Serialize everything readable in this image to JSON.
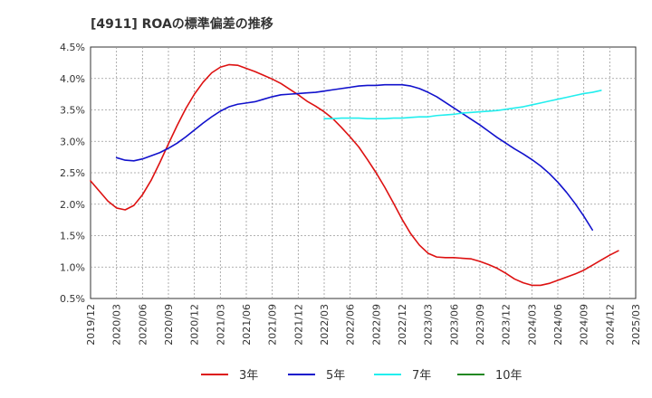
{
  "chart_data": {
    "type": "line",
    "title": "[4911]  ROAの標準偏差の推移",
    "xlabel": "",
    "ylabel": "",
    "x_ticks": [
      "2019/12",
      "2020/03",
      "2020/06",
      "2020/09",
      "2020/12",
      "2021/03",
      "2021/06",
      "2021/09",
      "2021/12",
      "2022/03",
      "2022/06",
      "2022/09",
      "2022/12",
      "2023/03",
      "2023/06",
      "2023/09",
      "2023/12",
      "2024/03",
      "2024/06",
      "2024/09",
      "2024/12",
      "2025/03"
    ],
    "y_ticks": [
      "0.5%",
      "1.0%",
      "1.5%",
      "2.0%",
      "2.5%",
      "3.0%",
      "3.5%",
      "4.0%",
      "4.5%"
    ],
    "ylim": [
      0.5,
      4.5
    ],
    "grid": true,
    "legend_position": "bottom",
    "series": [
      {
        "name": "3年",
        "color": "#dd1111",
        "points": [
          [
            "2019/12",
            2.37
          ],
          [
            "2020/01",
            2.21
          ],
          [
            "2020/02",
            2.05
          ],
          [
            "2020/03",
            1.94
          ],
          [
            "2020/04",
            1.91
          ],
          [
            "2020/05",
            1.98
          ],
          [
            "2020/06",
            2.15
          ],
          [
            "2020/07",
            2.38
          ],
          [
            "2020/08",
            2.66
          ],
          [
            "2020/09",
            2.96
          ],
          [
            "2020/10",
            3.25
          ],
          [
            "2020/11",
            3.52
          ],
          [
            "2020/12",
            3.75
          ],
          [
            "2021/01",
            3.94
          ],
          [
            "2021/02",
            4.09
          ],
          [
            "2021/03",
            4.18
          ],
          [
            "2021/04",
            4.22
          ],
          [
            "2021/05",
            4.21
          ],
          [
            "2021/06",
            4.16
          ],
          [
            "2021/07",
            4.11
          ],
          [
            "2021/08",
            4.05
          ],
          [
            "2021/09",
            3.99
          ],
          [
            "2021/10",
            3.92
          ],
          [
            "2021/11",
            3.83
          ],
          [
            "2021/12",
            3.74
          ],
          [
            "2022/01",
            3.64
          ],
          [
            "2022/02",
            3.56
          ],
          [
            "2022/03",
            3.47
          ],
          [
            "2022/04",
            3.36
          ],
          [
            "2022/05",
            3.22
          ],
          [
            "2022/06",
            3.07
          ],
          [
            "2022/07",
            2.91
          ],
          [
            "2022/08",
            2.71
          ],
          [
            "2022/09",
            2.5
          ],
          [
            "2022/10",
            2.27
          ],
          [
            "2022/11",
            2.02
          ],
          [
            "2022/12",
            1.76
          ],
          [
            "2023/01",
            1.53
          ],
          [
            "2023/02",
            1.35
          ],
          [
            "2023/03",
            1.22
          ],
          [
            "2023/04",
            1.16
          ],
          [
            "2023/05",
            1.15
          ],
          [
            "2023/06",
            1.15
          ],
          [
            "2023/07",
            1.14
          ],
          [
            "2023/08",
            1.13
          ],
          [
            "2023/09",
            1.09
          ],
          [
            "2023/10",
            1.04
          ],
          [
            "2023/11",
            0.98
          ],
          [
            "2023/12",
            0.9
          ],
          [
            "2024/01",
            0.81
          ],
          [
            "2024/02",
            0.75
          ],
          [
            "2024/03",
            0.71
          ],
          [
            "2024/04",
            0.71
          ],
          [
            "2024/05",
            0.74
          ],
          [
            "2024/06",
            0.79
          ],
          [
            "2024/07",
            0.84
          ],
          [
            "2024/08",
            0.89
          ],
          [
            "2024/09",
            0.95
          ],
          [
            "2024/10",
            1.03
          ],
          [
            "2024/11",
            1.11
          ],
          [
            "2024/12",
            1.19
          ],
          [
            "2025/01",
            1.26
          ]
        ]
      },
      {
        "name": "5年",
        "color": "#1111cc",
        "points": [
          [
            "2020/03",
            2.74
          ],
          [
            "2020/04",
            2.7
          ],
          [
            "2020/05",
            2.69
          ],
          [
            "2020/06",
            2.72
          ],
          [
            "2020/07",
            2.77
          ],
          [
            "2020/08",
            2.82
          ],
          [
            "2020/09",
            2.89
          ],
          [
            "2020/10",
            2.97
          ],
          [
            "2020/11",
            3.07
          ],
          [
            "2020/12",
            3.18
          ],
          [
            "2021/01",
            3.29
          ],
          [
            "2021/02",
            3.39
          ],
          [
            "2021/03",
            3.48
          ],
          [
            "2021/04",
            3.55
          ],
          [
            "2021/05",
            3.59
          ],
          [
            "2021/06",
            3.61
          ],
          [
            "2021/07",
            3.63
          ],
          [
            "2021/08",
            3.67
          ],
          [
            "2021/09",
            3.71
          ],
          [
            "2021/10",
            3.74
          ],
          [
            "2021/11",
            3.75
          ],
          [
            "2021/12",
            3.76
          ],
          [
            "2022/01",
            3.77
          ],
          [
            "2022/02",
            3.78
          ],
          [
            "2022/03",
            3.8
          ],
          [
            "2022/04",
            3.82
          ],
          [
            "2022/05",
            3.84
          ],
          [
            "2022/06",
            3.86
          ],
          [
            "2022/07",
            3.88
          ],
          [
            "2022/08",
            3.89
          ],
          [
            "2022/09",
            3.89
          ],
          [
            "2022/10",
            3.9
          ],
          [
            "2022/11",
            3.9
          ],
          [
            "2022/12",
            3.9
          ],
          [
            "2023/01",
            3.88
          ],
          [
            "2023/02",
            3.84
          ],
          [
            "2023/03",
            3.78
          ],
          [
            "2023/04",
            3.71
          ],
          [
            "2023/05",
            3.62
          ],
          [
            "2023/06",
            3.53
          ],
          [
            "2023/07",
            3.44
          ],
          [
            "2023/08",
            3.35
          ],
          [
            "2023/09",
            3.26
          ],
          [
            "2023/10",
            3.16
          ],
          [
            "2023/11",
            3.06
          ],
          [
            "2023/12",
            2.97
          ],
          [
            "2024/01",
            2.88
          ],
          [
            "2024/02",
            2.8
          ],
          [
            "2024/03",
            2.71
          ],
          [
            "2024/04",
            2.61
          ],
          [
            "2024/05",
            2.49
          ],
          [
            "2024/06",
            2.35
          ],
          [
            "2024/07",
            2.19
          ],
          [
            "2024/08",
            2.01
          ],
          [
            "2024/09",
            1.81
          ],
          [
            "2024/10",
            1.59
          ]
        ]
      },
      {
        "name": "7年",
        "color": "#22eeee",
        "points": [
          [
            "2022/03",
            3.36
          ],
          [
            "2022/04",
            3.36
          ],
          [
            "2022/05",
            3.37
          ],
          [
            "2022/06",
            3.37
          ],
          [
            "2022/07",
            3.37
          ],
          [
            "2022/08",
            3.36
          ],
          [
            "2022/09",
            3.36
          ],
          [
            "2022/10",
            3.36
          ],
          [
            "2022/11",
            3.37
          ],
          [
            "2022/12",
            3.37
          ],
          [
            "2023/01",
            3.38
          ],
          [
            "2023/02",
            3.39
          ],
          [
            "2023/03",
            3.39
          ],
          [
            "2023/04",
            3.41
          ],
          [
            "2023/05",
            3.42
          ],
          [
            "2023/06",
            3.43
          ],
          [
            "2023/07",
            3.45
          ],
          [
            "2023/08",
            3.46
          ],
          [
            "2023/09",
            3.47
          ],
          [
            "2023/10",
            3.48
          ],
          [
            "2023/11",
            3.49
          ],
          [
            "2023/12",
            3.51
          ],
          [
            "2024/01",
            3.53
          ],
          [
            "2024/02",
            3.55
          ],
          [
            "2024/03",
            3.58
          ],
          [
            "2024/04",
            3.61
          ],
          [
            "2024/05",
            3.64
          ],
          [
            "2024/06",
            3.67
          ],
          [
            "2024/07",
            3.7
          ],
          [
            "2024/08",
            3.73
          ],
          [
            "2024/09",
            3.76
          ],
          [
            "2024/10",
            3.78
          ],
          [
            "2024/11",
            3.81
          ]
        ]
      },
      {
        "name": "10年",
        "color": "#228822",
        "points": []
      }
    ]
  }
}
